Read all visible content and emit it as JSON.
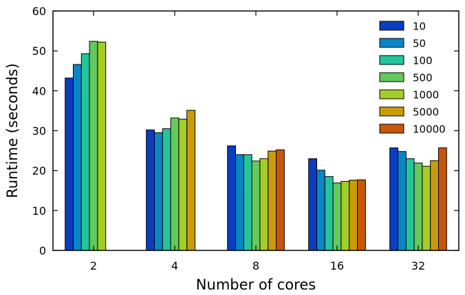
{
  "chart_data": {
    "type": "bar",
    "title": "",
    "xlabel": "Number of cores",
    "ylabel": "Runtime (seconds)",
    "ylim": [
      0,
      60
    ],
    "yticks": [
      0,
      10,
      20,
      30,
      40,
      50,
      60
    ],
    "categories": [
      "2",
      "4",
      "8",
      "16",
      "32"
    ],
    "legend_position": "top-right",
    "grid": false,
    "series": [
      {
        "name": "10",
        "color": "#0a3dbf",
        "values": [
          43.2,
          30.2,
          26.2,
          23.0,
          25.7
        ]
      },
      {
        "name": "50",
        "color": "#0a86c6",
        "values": [
          46.6,
          29.5,
          24.0,
          20.1,
          24.8
        ]
      },
      {
        "name": "100",
        "color": "#25c49a",
        "values": [
          49.3,
          30.5,
          24.0,
          18.5,
          23.0
        ]
      },
      {
        "name": "500",
        "color": "#63c95c",
        "values": [
          52.4,
          33.2,
          22.4,
          16.9,
          21.9
        ]
      },
      {
        "name": "1000",
        "color": "#a4cd26",
        "values": [
          52.2,
          32.9,
          23.0,
          17.3,
          21.1
        ]
      },
      {
        "name": "5000",
        "color": "#c99b0a",
        "values": [
          null,
          35.1,
          24.9,
          17.6,
          22.5
        ]
      },
      {
        "name": "10000",
        "color": "#c8560a",
        "values": [
          null,
          null,
          25.2,
          17.7,
          25.7
        ]
      }
    ]
  }
}
